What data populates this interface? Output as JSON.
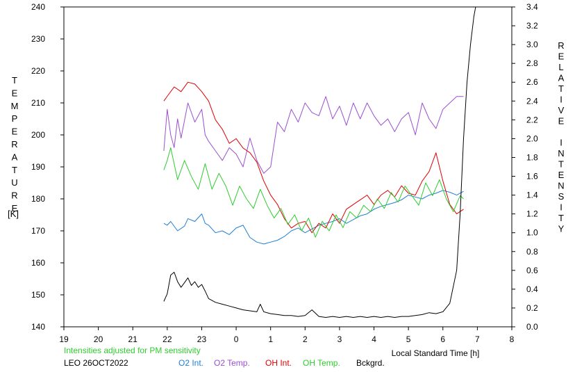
{
  "chart_data": {
    "type": "line",
    "title": "",
    "xlabel": "Local Standard Time [h]",
    "ylabel_left_letters": [
      "T",
      "E",
      "M",
      "P",
      "E",
      "R",
      "A",
      "T",
      "U",
      "R",
      "E"
    ],
    "ylabel_left_unit": "[K]",
    "ylabel_right_letters": [
      "R",
      "E",
      "L",
      "A",
      "T",
      "I",
      "V",
      "E",
      " ",
      "I",
      "N",
      "T",
      "E",
      "N",
      "S",
      "I",
      "T",
      "Y"
    ],
    "x_ticks": [
      "19",
      "20",
      "21",
      "22",
      "23",
      "0",
      "1",
      "2",
      "3",
      "4",
      "5",
      "6",
      "7",
      "8"
    ],
    "y_left_ticks": [
      "140",
      "150",
      "160",
      "170",
      "180",
      "190",
      "200",
      "210",
      "220",
      "230",
      "240"
    ],
    "y_right_ticks": [
      "0.0",
      "0.2",
      "0.4",
      "0.6",
      "0.8",
      "1.0",
      "1.2",
      "1.4",
      "1.6",
      "1.8",
      "2.0",
      "2.2",
      "2.4",
      "2.6",
      "2.8",
      "3.0",
      "3.2",
      "3.4"
    ],
    "xlim": [
      19,
      32
    ],
    "ylim_left": [
      140,
      240
    ],
    "ylim_right": [
      0,
      3.4
    ],
    "grid": false,
    "legend_position": "bottom",
    "series": [
      {
        "name": "O2 Int.",
        "color": "#1f7fd6",
        "axis": "right",
        "x": [
          21.9,
          22.0,
          22.1,
          22.3,
          22.5,
          22.6,
          22.8,
          23.0,
          23.1,
          23.2,
          23.4,
          23.6,
          23.8,
          24.0,
          24.2,
          24.4,
          24.6,
          24.8,
          25.0,
          25.2,
          25.4,
          25.6,
          25.8,
          26.0,
          26.2,
          26.4,
          26.6,
          26.8,
          27.0,
          27.2,
          27.4,
          27.6,
          27.8,
          28.0,
          28.2,
          28.4,
          28.6,
          28.8,
          29.0,
          29.2,
          29.4,
          29.6,
          29.8,
          30.0,
          30.2,
          30.4,
          30.6
        ],
        "y": [
          1.1,
          1.08,
          1.12,
          1.02,
          1.07,
          1.15,
          1.12,
          1.2,
          1.1,
          1.08,
          1.0,
          1.02,
          0.98,
          1.05,
          1.08,
          0.95,
          0.9,
          0.88,
          0.9,
          0.92,
          0.96,
          1.02,
          1.05,
          1.0,
          1.04,
          1.08,
          1.1,
          1.12,
          1.15,
          1.1,
          1.14,
          1.18,
          1.2,
          1.25,
          1.28,
          1.3,
          1.32,
          1.35,
          1.4,
          1.38,
          1.36,
          1.4,
          1.42,
          1.45,
          1.43,
          1.4,
          1.44
        ]
      },
      {
        "name": "O2 Temp.",
        "color": "#9a4fd0",
        "axis": "left",
        "x": [
          21.9,
          22.0,
          22.1,
          22.2,
          22.3,
          22.4,
          22.6,
          22.8,
          23.0,
          23.1,
          23.2,
          23.4,
          23.6,
          23.8,
          24.0,
          24.2,
          24.4,
          24.6,
          24.8,
          25.0,
          25.2,
          25.4,
          25.6,
          25.8,
          26.0,
          26.2,
          26.4,
          26.6,
          26.8,
          27.0,
          27.2,
          27.4,
          27.6,
          27.8,
          28.0,
          28.2,
          28.4,
          28.6,
          28.8,
          29.0,
          29.2,
          29.4,
          29.6,
          29.8,
          30.0,
          30.2,
          30.4,
          30.6
        ],
        "y": [
          195,
          208,
          200,
          196,
          205,
          199,
          210,
          204,
          208,
          200,
          198,
          195,
          192,
          196,
          194,
          190,
          199,
          192,
          188,
          190,
          204,
          201,
          208,
          204,
          210,
          207,
          206,
          212,
          205,
          209,
          203,
          210,
          205,
          210,
          206,
          203,
          205,
          201,
          205,
          207,
          200,
          210,
          205,
          202,
          208,
          210,
          212,
          212
        ]
      },
      {
        "name": "OH Int.",
        "color": "#e00000",
        "axis": "right",
        "x": [
          21.9,
          22.0,
          22.2,
          22.4,
          22.6,
          22.8,
          23.0,
          23.2,
          23.4,
          23.6,
          23.8,
          24.0,
          24.2,
          24.4,
          24.6,
          24.8,
          25.0,
          25.2,
          25.4,
          25.6,
          25.8,
          26.0,
          26.2,
          26.4,
          26.6,
          26.8,
          27.0,
          27.2,
          27.4,
          27.6,
          27.8,
          28.0,
          28.2,
          28.4,
          28.6,
          28.8,
          29.0,
          29.2,
          29.4,
          29.6,
          29.8,
          29.9,
          30.0,
          30.2,
          30.4,
          30.6
        ],
        "y": [
          2.4,
          2.45,
          2.55,
          2.5,
          2.6,
          2.58,
          2.5,
          2.4,
          2.2,
          2.1,
          1.95,
          2.0,
          1.9,
          1.85,
          1.75,
          1.55,
          1.4,
          1.3,
          1.15,
          1.05,
          1.1,
          1.12,
          1.0,
          1.1,
          1.05,
          1.2,
          1.1,
          1.25,
          1.3,
          1.35,
          1.4,
          1.3,
          1.4,
          1.45,
          1.38,
          1.5,
          1.42,
          1.4,
          1.55,
          1.65,
          1.85,
          1.7,
          1.55,
          1.3,
          1.2,
          1.25
        ]
      },
      {
        "name": "OH Temp.",
        "color": "#2ecc2e",
        "axis": "left",
        "x": [
          21.9,
          22.0,
          22.1,
          22.3,
          22.5,
          22.7,
          22.9,
          23.1,
          23.3,
          23.5,
          23.7,
          23.9,
          24.1,
          24.3,
          24.5,
          24.7,
          24.9,
          25.1,
          25.3,
          25.5,
          25.7,
          25.9,
          26.1,
          26.3,
          26.5,
          26.7,
          26.9,
          27.1,
          27.3,
          27.5,
          27.7,
          27.9,
          28.1,
          28.3,
          28.5,
          28.7,
          28.9,
          29.1,
          29.3,
          29.5,
          29.7,
          29.9,
          30.1,
          30.3,
          30.5,
          30.6
        ],
        "y": [
          189,
          192,
          196,
          186,
          192,
          187,
          183,
          191,
          183,
          188,
          184,
          178,
          184,
          180,
          177,
          183,
          178,
          174,
          177,
          172,
          175,
          170,
          174,
          168,
          173,
          170,
          175,
          171,
          176,
          174,
          178,
          176,
          180,
          177,
          182,
          179,
          184,
          181,
          178,
          185,
          181,
          186,
          180,
          176,
          181,
          180
        ]
      },
      {
        "name": "Bckgrd.",
        "color": "#000000",
        "axis": "right",
        "x": [
          21.9,
          22.0,
          22.1,
          22.2,
          22.3,
          22.4,
          22.5,
          22.6,
          22.7,
          22.8,
          22.9,
          23.0,
          23.1,
          23.2,
          23.4,
          23.6,
          23.8,
          24.0,
          24.2,
          24.4,
          24.6,
          24.7,
          24.8,
          25.0,
          25.2,
          25.4,
          25.6,
          25.8,
          26.0,
          26.2,
          26.4,
          26.6,
          26.8,
          27.0,
          27.2,
          27.4,
          27.6,
          27.8,
          28.0,
          28.2,
          28.4,
          28.6,
          28.8,
          29.0,
          29.2,
          29.4,
          29.6,
          29.8,
          30.0,
          30.2,
          30.4,
          30.5,
          30.6,
          30.7,
          30.8,
          30.9,
          30.95
        ],
        "y": [
          0.27,
          0.35,
          0.55,
          0.58,
          0.48,
          0.42,
          0.47,
          0.52,
          0.44,
          0.48,
          0.42,
          0.45,
          0.38,
          0.3,
          0.26,
          0.24,
          0.22,
          0.2,
          0.18,
          0.17,
          0.16,
          0.24,
          0.16,
          0.14,
          0.13,
          0.12,
          0.12,
          0.11,
          0.12,
          0.18,
          0.11,
          0.1,
          0.11,
          0.1,
          0.11,
          0.1,
          0.11,
          0.1,
          0.11,
          0.1,
          0.11,
          0.1,
          0.11,
          0.11,
          0.12,
          0.13,
          0.15,
          0.14,
          0.16,
          0.25,
          0.6,
          1.2,
          2.0,
          2.6,
          3.0,
          3.3,
          3.4
        ]
      }
    ]
  },
  "footer": {
    "note": "Intensities adjusted for PM sensitivity",
    "station": "LEO 26OCT2022",
    "legend": [
      {
        "label": "O2 Int.",
        "color": "#1f7fd6"
      },
      {
        "label": "O2 Temp.",
        "color": "#9a4fd0"
      },
      {
        "label": "OH Int.",
        "color": "#e00000"
      },
      {
        "label": "OH Temp.",
        "color": "#2ecc2e"
      },
      {
        "label": "Bckgrd.",
        "color": "#000000"
      }
    ]
  }
}
